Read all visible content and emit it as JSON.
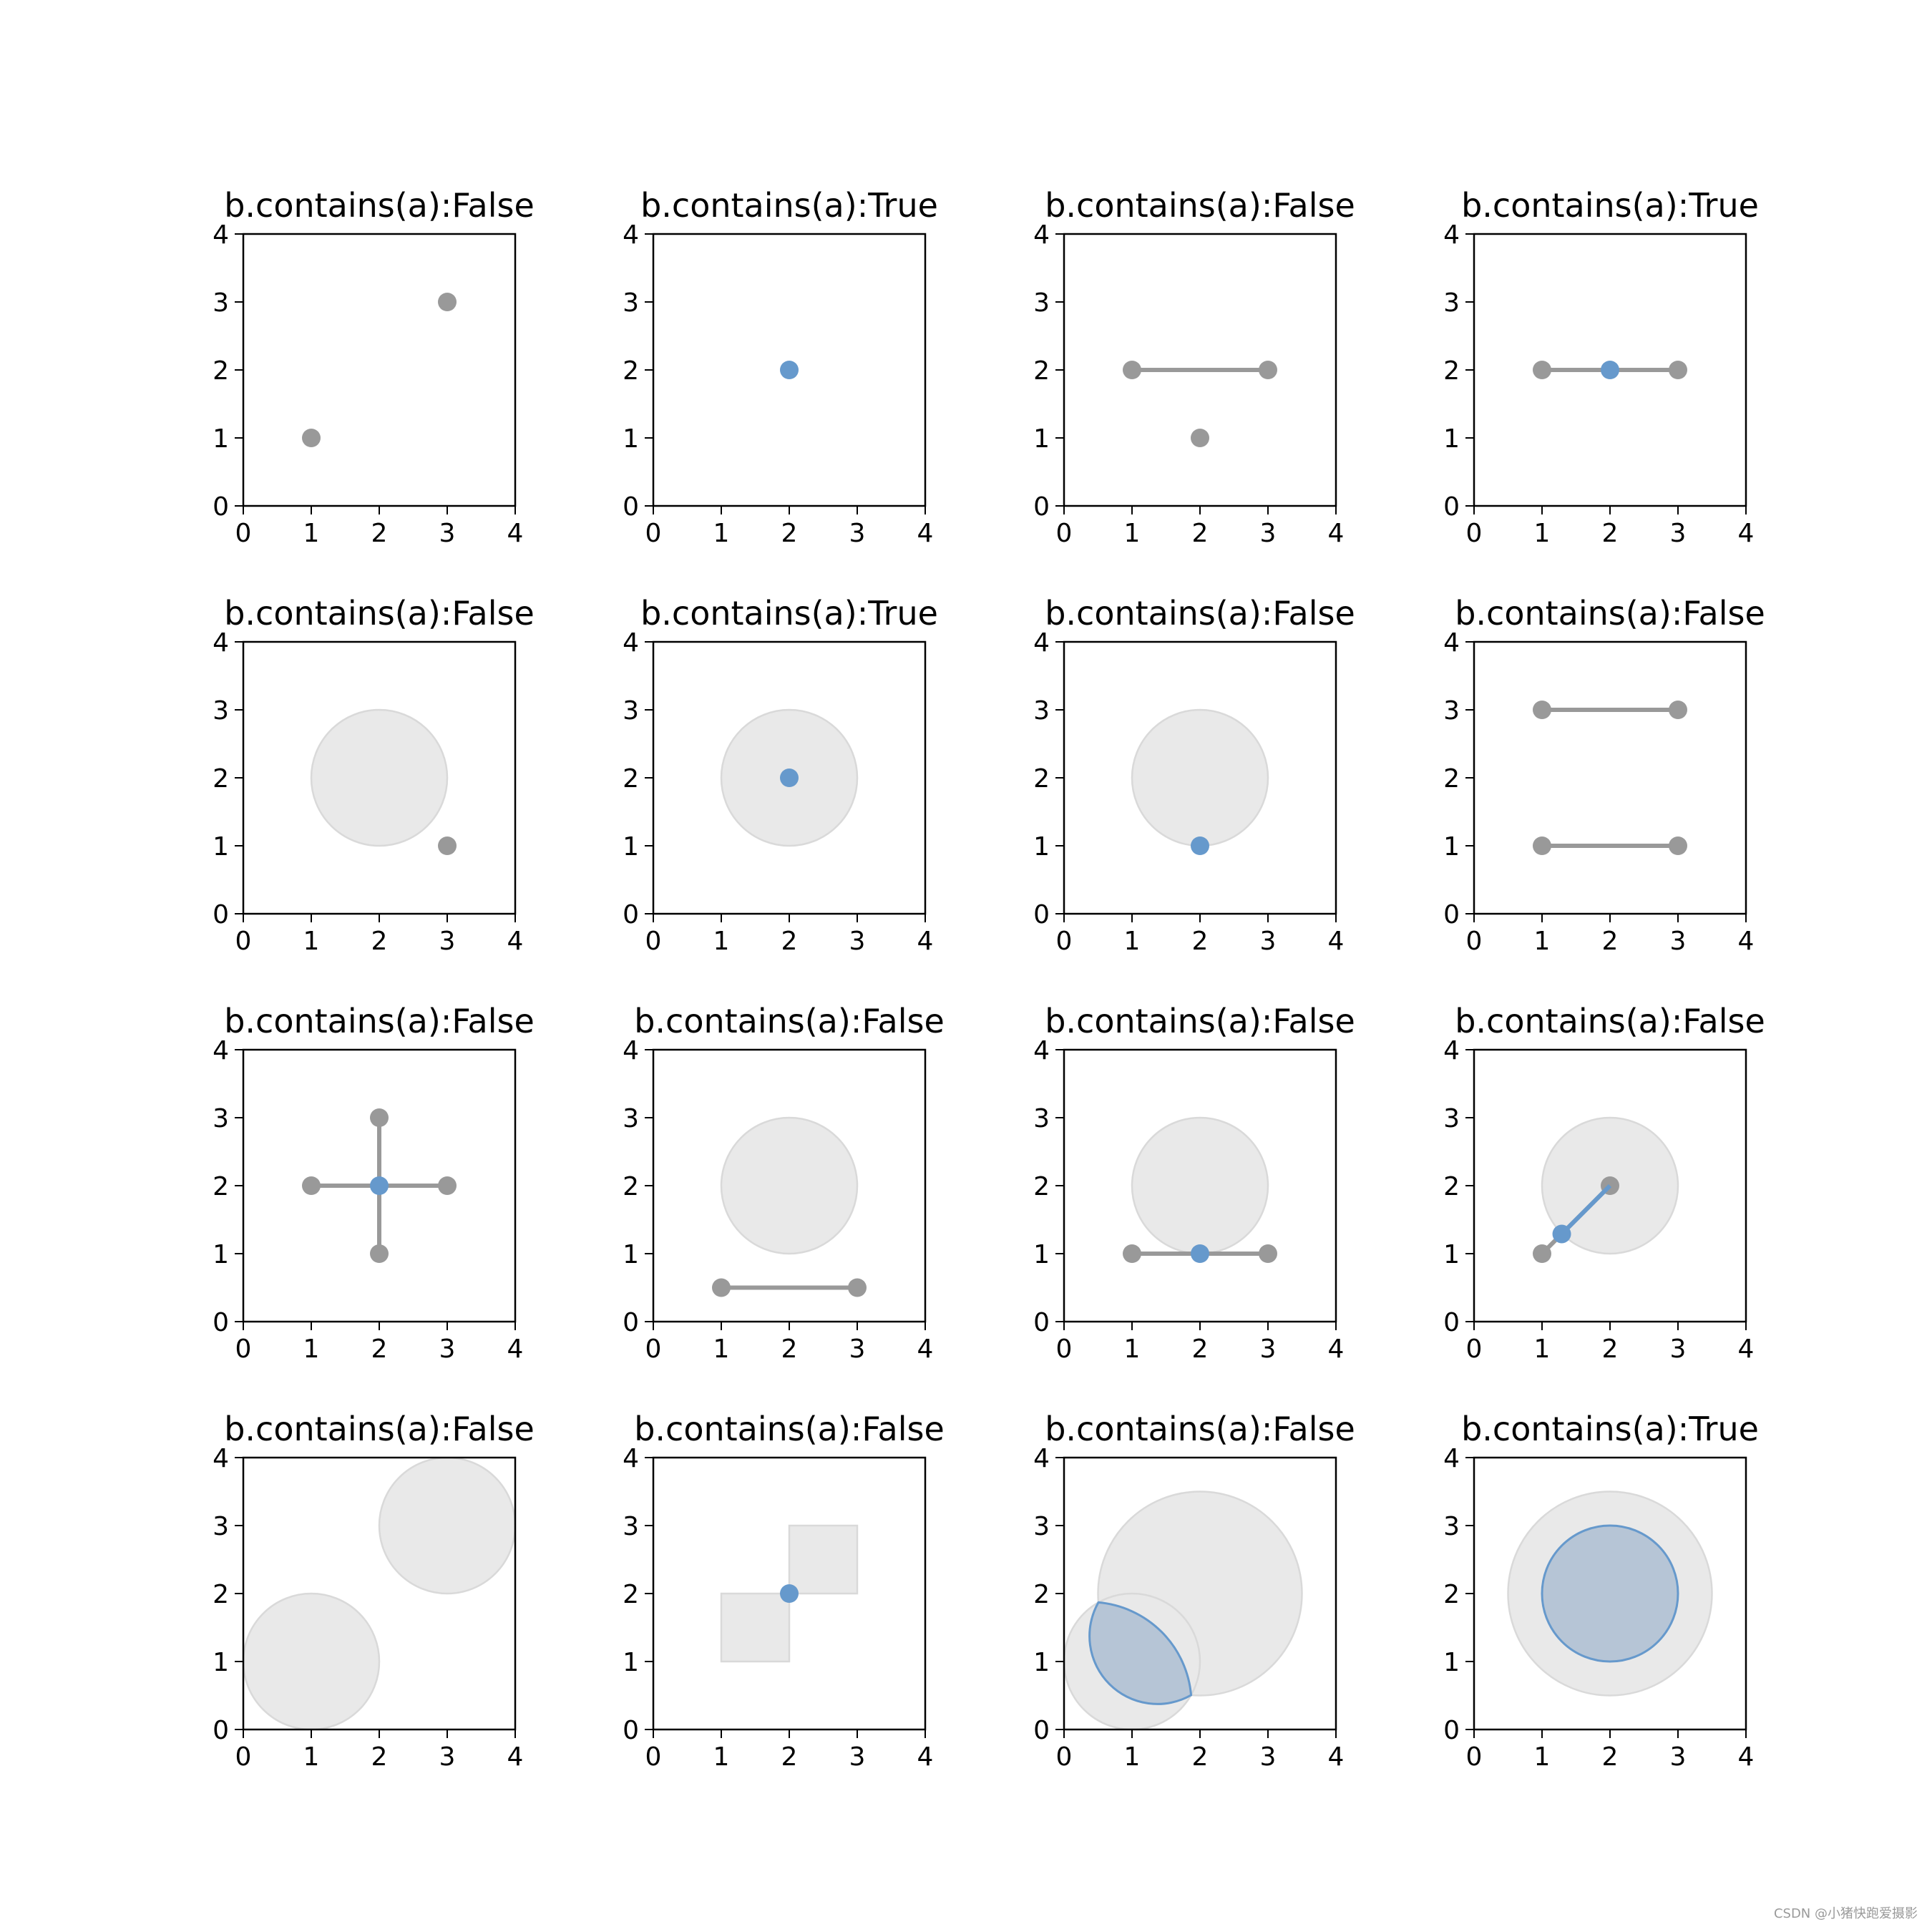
{
  "colors": {
    "gray": "#999999",
    "blue": "#6699cc",
    "fill": "#e9e9e9",
    "fill_edge": "#d9d9d9",
    "blue_fill": "#b6c5d6"
  },
  "watermark": "CSDN @小猪快跑爱摄影",
  "chart_data": [
    {
      "type": "scatter",
      "title": "b.contains(a):False",
      "xlim": [
        0,
        4
      ],
      "ylim": [
        0,
        4
      ],
      "xticks": [
        "0",
        "1",
        "2",
        "3",
        "4"
      ],
      "yticks": [
        "0",
        "1",
        "2",
        "3",
        "4"
      ],
      "shapes": [
        {
          "kind": "point",
          "xy": [
            1,
            1
          ],
          "color": "gray"
        },
        {
          "kind": "point",
          "xy": [
            3,
            3
          ],
          "color": "gray"
        }
      ]
    },
    {
      "type": "scatter",
      "title": "b.contains(a):True",
      "xlim": [
        0,
        4
      ],
      "ylim": [
        0,
        4
      ],
      "xticks": [
        "0",
        "1",
        "2",
        "3",
        "4"
      ],
      "yticks": [
        "0",
        "1",
        "2",
        "3",
        "4"
      ],
      "shapes": [
        {
          "kind": "point",
          "xy": [
            2,
            2
          ],
          "color": "blue"
        }
      ]
    },
    {
      "type": "scatter",
      "title": "b.contains(a):False",
      "xlim": [
        0,
        4
      ],
      "ylim": [
        0,
        4
      ],
      "xticks": [
        "0",
        "1",
        "2",
        "3",
        "4"
      ],
      "yticks": [
        "0",
        "1",
        "2",
        "3",
        "4"
      ],
      "shapes": [
        {
          "kind": "line",
          "points": [
            [
              1,
              2
            ],
            [
              3,
              2
            ]
          ],
          "color": "gray"
        },
        {
          "kind": "point",
          "xy": [
            2,
            1
          ],
          "color": "gray"
        }
      ]
    },
    {
      "type": "scatter",
      "title": "b.contains(a):True",
      "xlim": [
        0,
        4
      ],
      "ylim": [
        0,
        4
      ],
      "xticks": [
        "0",
        "1",
        "2",
        "3",
        "4"
      ],
      "yticks": [
        "0",
        "1",
        "2",
        "3",
        "4"
      ],
      "shapes": [
        {
          "kind": "line",
          "points": [
            [
              1,
              2
            ],
            [
              3,
              2
            ]
          ],
          "color": "gray"
        },
        {
          "kind": "point",
          "xy": [
            2,
            2
          ],
          "color": "blue"
        }
      ]
    },
    {
      "type": "scatter",
      "title": "b.contains(a):False",
      "xlim": [
        0,
        4
      ],
      "ylim": [
        0,
        4
      ],
      "xticks": [
        "0",
        "1",
        "2",
        "3",
        "4"
      ],
      "yticks": [
        "0",
        "1",
        "2",
        "3",
        "4"
      ],
      "shapes": [
        {
          "kind": "circle",
          "center": [
            2,
            2
          ],
          "r": 1
        },
        {
          "kind": "point",
          "xy": [
            3,
            1
          ],
          "color": "gray"
        }
      ]
    },
    {
      "type": "scatter",
      "title": "b.contains(a):True",
      "xlim": [
        0,
        4
      ],
      "ylim": [
        0,
        4
      ],
      "xticks": [
        "0",
        "1",
        "2",
        "3",
        "4"
      ],
      "yticks": [
        "0",
        "1",
        "2",
        "3",
        "4"
      ],
      "shapes": [
        {
          "kind": "circle",
          "center": [
            2,
            2
          ],
          "r": 1
        },
        {
          "kind": "point",
          "xy": [
            2,
            2
          ],
          "color": "blue"
        }
      ]
    },
    {
      "type": "scatter",
      "title": "b.contains(a):False",
      "xlim": [
        0,
        4
      ],
      "ylim": [
        0,
        4
      ],
      "xticks": [
        "0",
        "1",
        "2",
        "3",
        "4"
      ],
      "yticks": [
        "0",
        "1",
        "2",
        "3",
        "4"
      ],
      "shapes": [
        {
          "kind": "circle",
          "center": [
            2,
            2
          ],
          "r": 1
        },
        {
          "kind": "point",
          "xy": [
            2,
            1
          ],
          "color": "blue"
        }
      ]
    },
    {
      "type": "scatter",
      "title": "b.contains(a):False",
      "xlim": [
        0,
        4
      ],
      "ylim": [
        0,
        4
      ],
      "xticks": [
        "0",
        "1",
        "2",
        "3",
        "4"
      ],
      "yticks": [
        "0",
        "1",
        "2",
        "3",
        "4"
      ],
      "shapes": [
        {
          "kind": "line",
          "points": [
            [
              1,
              3
            ],
            [
              3,
              3
            ]
          ],
          "color": "gray"
        },
        {
          "kind": "line",
          "points": [
            [
              1,
              1
            ],
            [
              3,
              1
            ]
          ],
          "color": "gray"
        }
      ]
    },
    {
      "type": "scatter",
      "title": "b.contains(a):False",
      "xlim": [
        0,
        4
      ],
      "ylim": [
        0,
        4
      ],
      "xticks": [
        "0",
        "1",
        "2",
        "3",
        "4"
      ],
      "yticks": [
        "0",
        "1",
        "2",
        "3",
        "4"
      ],
      "shapes": [
        {
          "kind": "line",
          "points": [
            [
              1,
              2
            ],
            [
              3,
              2
            ]
          ],
          "color": "gray"
        },
        {
          "kind": "line",
          "points": [
            [
              2,
              1
            ],
            [
              2,
              3
            ]
          ],
          "color": "gray"
        },
        {
          "kind": "point",
          "xy": [
            2,
            2
          ],
          "color": "blue"
        }
      ]
    },
    {
      "type": "scatter",
      "title": "b.contains(a):False",
      "xlim": [
        0,
        4
      ],
      "ylim": [
        0,
        4
      ],
      "xticks": [
        "0",
        "1",
        "2",
        "3",
        "4"
      ],
      "yticks": [
        "0",
        "1",
        "2",
        "3",
        "4"
      ],
      "shapes": [
        {
          "kind": "circle",
          "center": [
            2,
            2
          ],
          "r": 1
        },
        {
          "kind": "line",
          "points": [
            [
              1,
              0.5
            ],
            [
              3,
              0.5
            ]
          ],
          "color": "gray"
        }
      ]
    },
    {
      "type": "scatter",
      "title": "b.contains(a):False",
      "xlim": [
        0,
        4
      ],
      "ylim": [
        0,
        4
      ],
      "xticks": [
        "0",
        "1",
        "2",
        "3",
        "4"
      ],
      "yticks": [
        "0",
        "1",
        "2",
        "3",
        "4"
      ],
      "shapes": [
        {
          "kind": "circle",
          "center": [
            2,
            2
          ],
          "r": 1
        },
        {
          "kind": "line",
          "points": [
            [
              1,
              1
            ],
            [
              3,
              1
            ]
          ],
          "color": "gray"
        },
        {
          "kind": "point",
          "xy": [
            2,
            1
          ],
          "color": "blue"
        }
      ]
    },
    {
      "type": "scatter",
      "title": "b.contains(a):False",
      "xlim": [
        0,
        4
      ],
      "ylim": [
        0,
        4
      ],
      "xticks": [
        "0",
        "1",
        "2",
        "3",
        "4"
      ],
      "yticks": [
        "0",
        "1",
        "2",
        "3",
        "4"
      ],
      "shapes": [
        {
          "kind": "circle",
          "center": [
            2,
            2
          ],
          "r": 1
        },
        {
          "kind": "line",
          "points": [
            [
              1,
              1
            ],
            [
              2,
              2
            ]
          ],
          "color": "gray"
        },
        {
          "kind": "line",
          "points": [
            [
              1.29,
              1.29
            ],
            [
              2,
              2
            ]
          ],
          "color": "blue"
        },
        {
          "kind": "point",
          "xy": [
            1.29,
            1.29
          ],
          "color": "blue"
        }
      ]
    },
    {
      "type": "scatter",
      "title": "b.contains(a):False",
      "xlim": [
        0,
        4
      ],
      "ylim": [
        0,
        4
      ],
      "xticks": [
        "0",
        "1",
        "2",
        "3",
        "4"
      ],
      "yticks": [
        "0",
        "1",
        "2",
        "3",
        "4"
      ],
      "shapes": [
        {
          "kind": "circle",
          "center": [
            1,
            1
          ],
          "r": 1
        },
        {
          "kind": "circle",
          "center": [
            3,
            3
          ],
          "r": 1
        }
      ]
    },
    {
      "type": "scatter",
      "title": "b.contains(a):False",
      "xlim": [
        0,
        4
      ],
      "ylim": [
        0,
        4
      ],
      "xticks": [
        "0",
        "1",
        "2",
        "3",
        "4"
      ],
      "yticks": [
        "0",
        "1",
        "2",
        "3",
        "4"
      ],
      "shapes": [
        {
          "kind": "rect",
          "x": [
            1,
            2
          ],
          "y": [
            1,
            2
          ]
        },
        {
          "kind": "rect",
          "x": [
            2,
            3
          ],
          "y": [
            2,
            3
          ]
        },
        {
          "kind": "point",
          "xy": [
            2,
            2
          ],
          "color": "blue"
        }
      ]
    },
    {
      "type": "scatter",
      "title": "b.contains(a):False",
      "xlim": [
        0,
        4
      ],
      "ylim": [
        0,
        4
      ],
      "xticks": [
        "0",
        "1",
        "2",
        "3",
        "4"
      ],
      "yticks": [
        "0",
        "1",
        "2",
        "3",
        "4"
      ],
      "shapes": [
        {
          "kind": "circle",
          "center": [
            2,
            2
          ],
          "r": 1.5
        },
        {
          "kind": "circle",
          "center": [
            1,
            1
          ],
          "r": 1
        },
        {
          "kind": "lens",
          "c1": [
            2,
            2
          ],
          "r1": 1.5,
          "c2": [
            1,
            1
          ],
          "r2": 1
        }
      ]
    },
    {
      "type": "scatter",
      "title": "b.contains(a):True",
      "xlim": [
        0,
        4
      ],
      "ylim": [
        0,
        4
      ],
      "xticks": [
        "0",
        "1",
        "2",
        "3",
        "4"
      ],
      "yticks": [
        "0",
        "1",
        "2",
        "3",
        "4"
      ],
      "shapes": [
        {
          "kind": "circle",
          "center": [
            2,
            2
          ],
          "r": 1.5
        },
        {
          "kind": "circle",
          "center": [
            2,
            2
          ],
          "r": 1,
          "style": "blue"
        }
      ]
    }
  ]
}
